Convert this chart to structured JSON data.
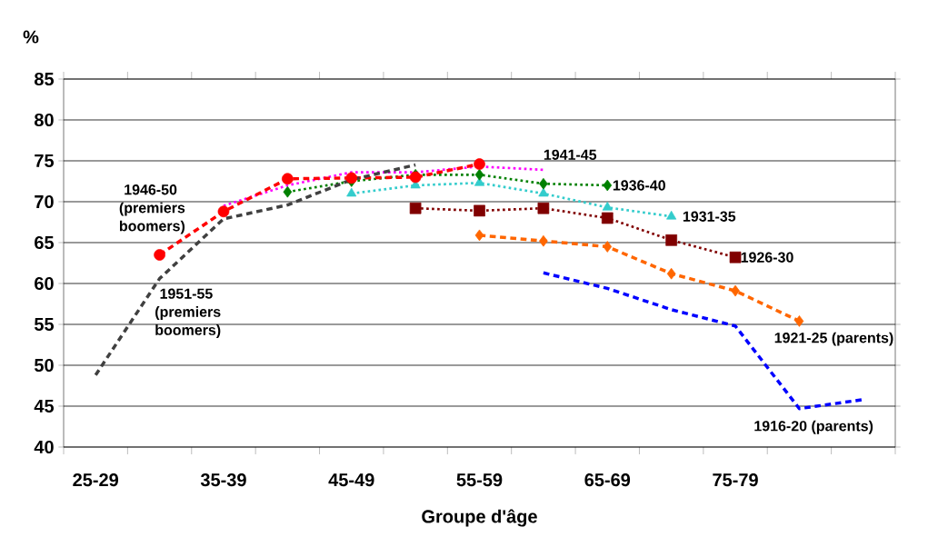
{
  "chart_data": {
    "type": "line",
    "xlabel": "Groupe d'âge",
    "ylabel": "%",
    "categories": [
      "25-29",
      null,
      "35-39",
      null,
      "45-49",
      null,
      "55-59",
      null,
      "65-69",
      null,
      "75-79",
      null,
      null
    ],
    "ylim": [
      40,
      85
    ],
    "yticks": [
      40,
      45,
      50,
      55,
      60,
      65,
      70,
      75,
      80,
      85
    ],
    "grid": "y",
    "series": [
      {
        "name": "1951-55 (premiers boomers)",
        "color": "#404040",
        "marker": "none",
        "line_style": "dashed",
        "values": [
          48.8,
          60.6,
          67.9,
          69.6,
          72.7,
          74.5,
          null,
          null,
          null,
          null,
          null,
          null,
          null
        ]
      },
      {
        "name": "1946-50 (premiers boomers)",
        "color": "#ff0000",
        "marker": "circle",
        "line_style": "dashed",
        "values": [
          null,
          63.5,
          68.8,
          72.8,
          72.9,
          73.0,
          74.6,
          null,
          null,
          null,
          null,
          null,
          null
        ]
      },
      {
        "name": "1941-45",
        "color": "#ff00ff",
        "marker": "none",
        "line_style": "dotted",
        "values": [
          null,
          null,
          69.5,
          72.0,
          73.6,
          73.6,
          74.3,
          73.9,
          null,
          null,
          null,
          null,
          null
        ]
      },
      {
        "name": "1936-40",
        "color": "#008000",
        "marker": "diamond",
        "line_style": "dotted",
        "values": [
          null,
          null,
          null,
          71.2,
          72.5,
          73.3,
          73.3,
          72.2,
          72.0,
          null,
          null,
          null,
          null
        ]
      },
      {
        "name": "1931-35",
        "color": "#33cccc",
        "marker": "triangle",
        "line_style": "dotted",
        "values": [
          null,
          null,
          null,
          null,
          71.0,
          72.0,
          72.3,
          71.0,
          69.3,
          68.2,
          null,
          null,
          null
        ]
      },
      {
        "name": "1926-30",
        "color": "#800000",
        "marker": "square",
        "line_style": "dotted",
        "values": [
          null,
          null,
          null,
          null,
          null,
          69.2,
          68.9,
          69.2,
          68.0,
          65.3,
          63.2,
          null,
          null
        ]
      },
      {
        "name": "1921-25 (parents)",
        "color": "#ff6600",
        "marker": "diamond",
        "line_style": "dashed",
        "values": [
          null,
          null,
          null,
          null,
          null,
          null,
          65.9,
          65.2,
          64.5,
          61.2,
          59.1,
          55.4,
          null
        ]
      },
      {
        "name": "1916-20 (parents)",
        "color": "#0000ff",
        "marker": "none",
        "line_style": "dashed",
        "values": [
          null,
          null,
          null,
          null,
          null,
          null,
          null,
          61.3,
          59.4,
          56.8,
          54.8,
          44.7,
          45.8
        ]
      }
    ]
  }
}
